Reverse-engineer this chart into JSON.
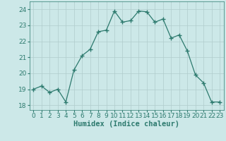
{
  "x": [
    0,
    1,
    2,
    3,
    4,
    5,
    6,
    7,
    8,
    9,
    10,
    11,
    12,
    13,
    14,
    15,
    16,
    17,
    18,
    19,
    20,
    21,
    22,
    23
  ],
  "y": [
    19.0,
    19.2,
    18.8,
    19.0,
    18.2,
    20.2,
    21.1,
    21.5,
    22.6,
    22.7,
    23.9,
    23.2,
    23.3,
    23.9,
    23.85,
    23.2,
    23.4,
    22.2,
    22.4,
    21.4,
    19.9,
    19.4,
    18.2,
    18.2
  ],
  "line_color": "#2d7a6e",
  "marker": "+",
  "marker_size": 4,
  "bg_color": "#cce8e8",
  "grid_color": "#b0cccc",
  "xlabel": "Humidex (Indice chaleur)",
  "ylim": [
    17.7,
    24.5
  ],
  "xlim": [
    -0.5,
    23.5
  ],
  "yticks": [
    18,
    19,
    20,
    21,
    22,
    23,
    24
  ],
  "xticks": [
    0,
    1,
    2,
    3,
    4,
    5,
    6,
    7,
    8,
    9,
    10,
    11,
    12,
    13,
    14,
    15,
    16,
    17,
    18,
    19,
    20,
    21,
    22,
    23
  ],
  "xlabel_fontsize": 7.5,
  "tick_fontsize": 6.5,
  "linewidth": 0.9
}
